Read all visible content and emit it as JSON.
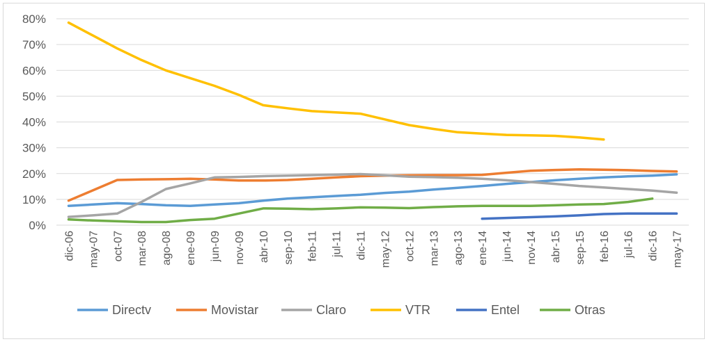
{
  "chart_data": {
    "type": "line",
    "categories": [
      "dic-06",
      "may-07",
      "oct-07",
      "mar-08",
      "ago-08",
      "ene-09",
      "jun-09",
      "nov-09",
      "abr-10",
      "sep-10",
      "feb-11",
      "jul-11",
      "dic-11",
      "may-12",
      "oct-12",
      "mar-13",
      "ago-13",
      "ene-14",
      "jun-14",
      "nov-14",
      "abr-15",
      "sep-15",
      "feb-16",
      "jul-16",
      "dic-16",
      "may-17"
    ],
    "ylim": [
      0,
      80
    ],
    "yticks": [
      "0%",
      "10%",
      "20%",
      "30%",
      "40%",
      "50%",
      "60%",
      "70%",
      "80%"
    ],
    "grid": true,
    "legend_position": "bottom",
    "series": [
      {
        "name": "Directv",
        "color": "#5b9bd5",
        "values": [
          7.5,
          8,
          8.5,
          8.2,
          7.7,
          7.5,
          8,
          8.5,
          9.5,
          10.3,
          10.8,
          11.3,
          11.8,
          12.5,
          13,
          13.8,
          14.5,
          15.2,
          16,
          16.7,
          17.4,
          18,
          18.5,
          18.9,
          19.2,
          19.7
        ]
      },
      {
        "name": "Movistar",
        "color": "#ed7d31",
        "values": [
          9.5,
          13.5,
          17.5,
          17.7,
          17.8,
          18,
          17.7,
          17.3,
          17.3,
          17.5,
          18,
          18.5,
          19,
          19.2,
          19.3,
          19.4,
          19.4,
          19.5,
          20.3,
          21.1,
          21.4,
          21.6,
          21.5,
          21.3,
          21,
          20.8
        ]
      },
      {
        "name": "Claro",
        "color": "#a5a5a5",
        "values": [
          3.2,
          3.8,
          4.5,
          9,
          14,
          16.2,
          18.5,
          18.7,
          19,
          19.2,
          19.4,
          19.6,
          19.8,
          19.3,
          18.8,
          18.6,
          18.4,
          18,
          17.4,
          16.7,
          16,
          15.2,
          14.6,
          14,
          13.4,
          12.6
        ]
      },
      {
        "name": "VTR",
        "color": "#ffc000",
        "values": [
          78.5,
          73.5,
          68.5,
          64,
          60,
          57,
          54,
          50.5,
          46.5,
          45.3,
          44.2,
          43.7,
          43.2,
          41,
          38.8,
          37.3,
          36,
          35.5,
          35,
          34.8,
          34.6,
          34,
          33.2,
          null,
          null,
          null
        ]
      },
      {
        "name": "Entel",
        "color": "#4472c4",
        "values": [
          null,
          null,
          null,
          null,
          null,
          null,
          null,
          null,
          null,
          null,
          null,
          null,
          null,
          null,
          null,
          null,
          null,
          2.5,
          2.8,
          3.1,
          3.4,
          3.8,
          4.3,
          4.5,
          4.5,
          4.5
        ]
      },
      {
        "name": "Otras",
        "color": "#70ad47",
        "values": [
          2.2,
          1.8,
          1.5,
          1.2,
          1.2,
          2,
          2.5,
          4.5,
          6.5,
          6.4,
          6.2,
          6.5,
          6.9,
          6.8,
          6.6,
          7,
          7.3,
          7.5,
          7.5,
          7.5,
          7.7,
          8,
          8.2,
          9,
          10.3,
          null
        ]
      }
    ]
  }
}
